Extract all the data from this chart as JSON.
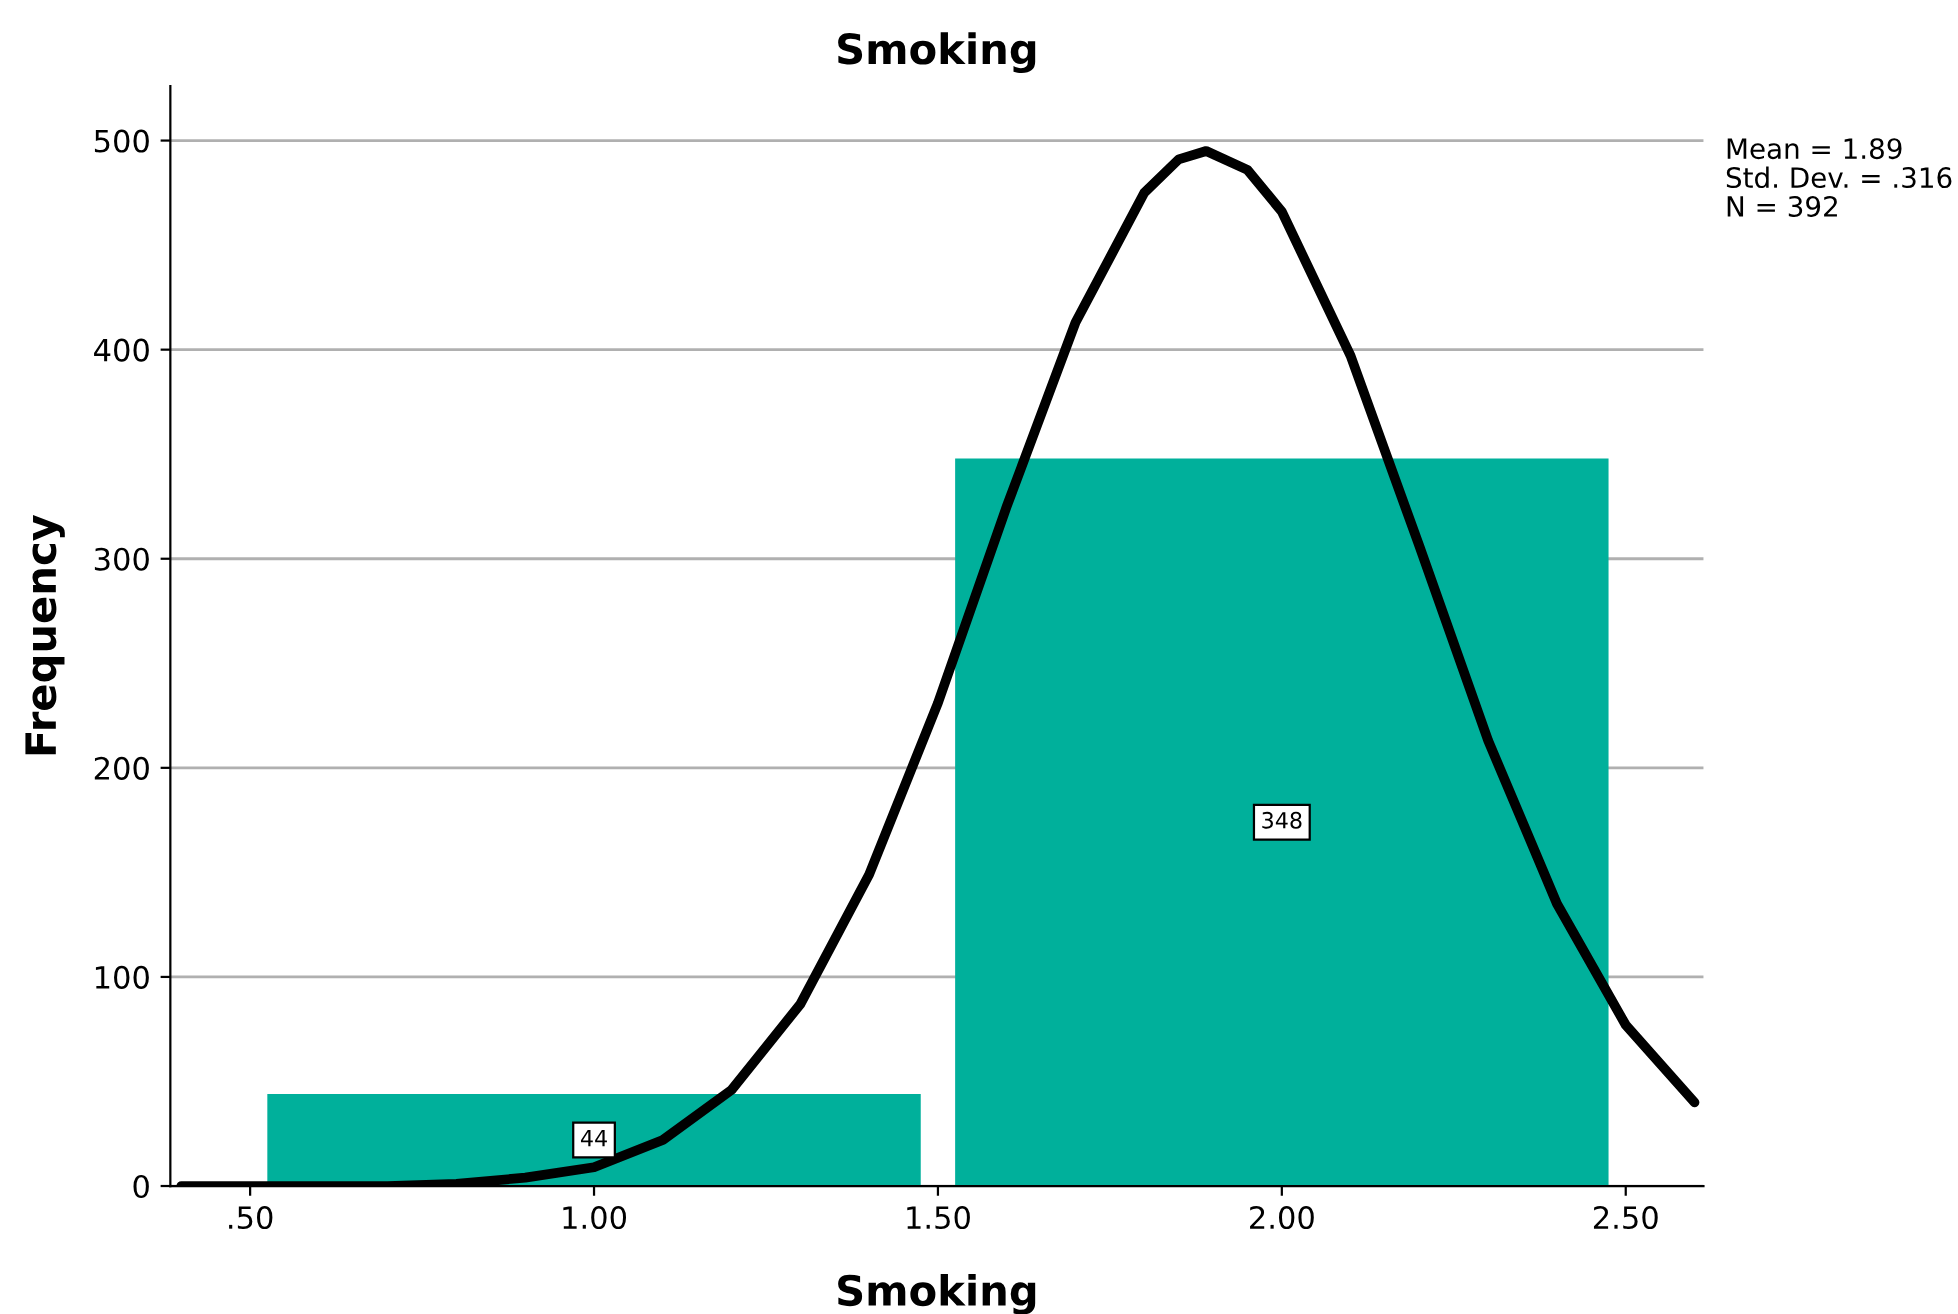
{
  "chart_data": {
    "type": "histogram",
    "title": "Smoking",
    "xlabel": "Smoking",
    "ylabel": "Frequency",
    "bins": [
      0.5,
      1.5,
      2.5
    ],
    "values": [
      44,
      348
    ],
    "color": "#00b09b",
    "value_labels": [
      "44",
      "348"
    ],
    "series": [
      {
        "type": "line",
        "color": "#000000",
        "x": [
          0.4,
          0.6,
          0.7,
          0.8,
          0.9,
          1.0,
          1.1,
          1.2,
          1.3,
          1.4,
          1.5,
          1.6,
          1.7,
          1.8,
          1.85,
          1.89,
          1.95,
          2.0,
          2.1,
          2.2,
          2.3,
          2.4,
          2.5,
          2.6
        ],
        "values": [
          0,
          0,
          0,
          1,
          4,
          9,
          22,
          46,
          87,
          149,
          231,
          325,
          413,
          475,
          491,
          495,
          486,
          466,
          397,
          306,
          213,
          135,
          77,
          40
        ]
      }
    ],
    "xlim": [
      0.384,
      2.613
    ],
    "ylim": [
      0,
      526
    ],
    "xticks": [
      {
        "value": 0.5,
        "label": ".50"
      },
      {
        "value": 1.0,
        "label": "1.00"
      },
      {
        "value": 1.5,
        "label": "1.50"
      },
      {
        "value": 2.0,
        "label": "2.00"
      },
      {
        "value": 2.5,
        "label": "2.50"
      }
    ],
    "yticks": [
      0,
      100,
      200,
      300,
      400,
      500
    ],
    "grid": "y",
    "marker": "none",
    "line_style": "solid",
    "annotations": [
      "Mean = 1.89",
      "Std. Dev. = .316",
      "N = 392"
    ]
  }
}
